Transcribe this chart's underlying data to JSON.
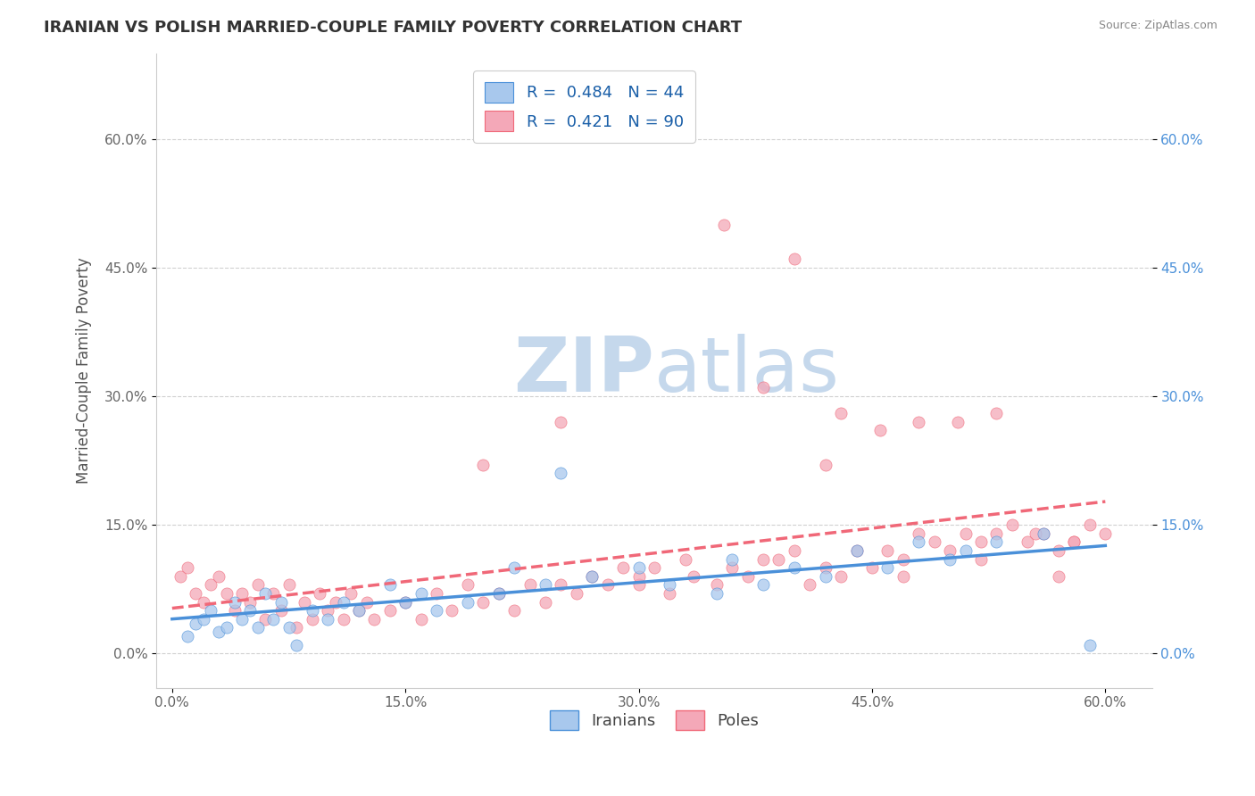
{
  "title": "IRANIAN VS POLISH MARRIED-COUPLE FAMILY POVERTY CORRELATION CHART",
  "source": "Source: ZipAtlas.com",
  "ylabel": "Married-Couple Family Poverty",
  "x_tick_labels": [
    "0.0%",
    "15.0%",
    "30.0%",
    "45.0%",
    "60.0%"
  ],
  "y_tick_labels": [
    "0.0%",
    "15.0%",
    "30.0%",
    "45.0%",
    "60.0%"
  ],
  "x_ticks": [
    0,
    15,
    30,
    45,
    60
  ],
  "y_ticks": [
    0,
    15,
    30,
    45,
    60
  ],
  "xlim": [
    -1,
    63
  ],
  "ylim": [
    -4,
    70
  ],
  "legend_labels": [
    "Iranians",
    "Poles"
  ],
  "R_iranian": 0.484,
  "N_iranian": 44,
  "R_polish": 0.421,
  "N_polish": 90,
  "iranian_color": "#a8c8ed",
  "polish_color": "#f4a8b8",
  "iranian_line_color": "#4a90d9",
  "polish_line_color": "#f06878",
  "watermark_zip": "ZIP",
  "watermark_atlas": "atlas",
  "watermark_color_zip": "#c5d8ec",
  "watermark_color_atlas": "#c5d8ec",
  "background_color": "#ffffff",
  "grid_color": "#d0d0d0",
  "title_color": "#333333",
  "iranian_scatter_x": [
    1.0,
    1.5,
    2.0,
    2.5,
    3.0,
    3.5,
    4.0,
    4.5,
    5.0,
    5.5,
    6.0,
    6.5,
    7.0,
    7.5,
    8.0,
    9.0,
    10.0,
    11.0,
    12.0,
    14.0,
    15.0,
    16.0,
    17.0,
    19.0,
    21.0,
    22.0,
    24.0,
    25.0,
    27.0,
    30.0,
    32.0,
    35.0,
    36.0,
    38.0,
    40.0,
    42.0,
    44.0,
    46.0,
    48.0,
    50.0,
    51.0,
    53.0,
    56.0,
    59.0
  ],
  "iranian_scatter_y": [
    2.0,
    3.5,
    4.0,
    5.0,
    2.5,
    3.0,
    6.0,
    4.0,
    5.0,
    3.0,
    7.0,
    4.0,
    6.0,
    3.0,
    1.0,
    5.0,
    4.0,
    6.0,
    5.0,
    8.0,
    6.0,
    7.0,
    5.0,
    6.0,
    7.0,
    10.0,
    8.0,
    21.0,
    9.0,
    10.0,
    8.0,
    7.0,
    11.0,
    8.0,
    10.0,
    9.0,
    12.0,
    10.0,
    13.0,
    11.0,
    12.0,
    13.0,
    14.0,
    1.0
  ],
  "polish_scatter_x": [
    0.5,
    1.0,
    1.5,
    2.0,
    2.5,
    3.0,
    3.5,
    4.0,
    4.5,
    5.0,
    5.5,
    6.0,
    6.5,
    7.0,
    7.5,
    8.0,
    8.5,
    9.0,
    9.5,
    10.0,
    10.5,
    11.0,
    11.5,
    12.0,
    12.5,
    13.0,
    14.0,
    15.0,
    16.0,
    17.0,
    18.0,
    19.0,
    20.0,
    21.0,
    22.0,
    23.0,
    24.0,
    25.0,
    26.0,
    27.0,
    28.0,
    29.0,
    30.0,
    31.0,
    32.0,
    33.5,
    35.0,
    36.0,
    37.0,
    38.0,
    39.0,
    40.0,
    41.0,
    42.0,
    43.0,
    44.0,
    45.0,
    46.0,
    47.0,
    48.0,
    49.0,
    50.0,
    51.0,
    52.0,
    53.0,
    54.0,
    55.0,
    56.0,
    57.0,
    58.0,
    59.0,
    60.0,
    35.5,
    40.0,
    43.0,
    45.5,
    48.0,
    50.5,
    53.0,
    55.5,
    58.0,
    30.0,
    20.0,
    25.0,
    33.0,
    38.0,
    42.0,
    47.0,
    52.0,
    57.0
  ],
  "polish_scatter_y": [
    9.0,
    10.0,
    7.0,
    6.0,
    8.0,
    9.0,
    7.0,
    5.0,
    7.0,
    6.0,
    8.0,
    4.0,
    7.0,
    5.0,
    8.0,
    3.0,
    6.0,
    4.0,
    7.0,
    5.0,
    6.0,
    4.0,
    7.0,
    5.0,
    6.0,
    4.0,
    5.0,
    6.0,
    4.0,
    7.0,
    5.0,
    8.0,
    6.0,
    7.0,
    5.0,
    8.0,
    6.0,
    8.0,
    7.0,
    9.0,
    8.0,
    10.0,
    8.0,
    10.0,
    7.0,
    9.0,
    8.0,
    10.0,
    9.0,
    31.0,
    11.0,
    12.0,
    8.0,
    10.0,
    9.0,
    12.0,
    10.0,
    12.0,
    11.0,
    14.0,
    13.0,
    12.0,
    14.0,
    13.0,
    14.0,
    15.0,
    13.0,
    14.0,
    12.0,
    13.0,
    15.0,
    14.0,
    50.0,
    46.0,
    28.0,
    26.0,
    27.0,
    27.0,
    28.0,
    14.0,
    13.0,
    9.0,
    22.0,
    27.0,
    11.0,
    11.0,
    22.0,
    9.0,
    11.0,
    9.0
  ]
}
